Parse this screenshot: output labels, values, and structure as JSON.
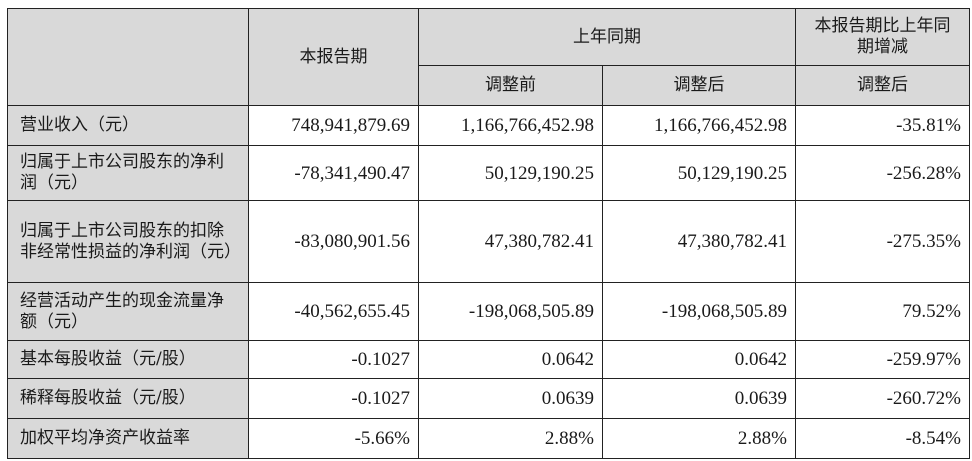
{
  "header": {
    "current_period": "本报告期",
    "prior_period": "上年同期",
    "change": "本报告期比上年同期增减",
    "before_adjust": "调整前",
    "after_adjust": "调整后",
    "change_after_adjust": "调整后"
  },
  "rows": [
    {
      "label": "营业收入（元）",
      "current": "748,941,879.69",
      "before": "1,166,766,452.98",
      "after": "1,166,766,452.98",
      "change": "-35.81%"
    },
    {
      "label": "归属于上市公司股东的净利润（元）",
      "current": "-78,341,490.47",
      "before": "50,129,190.25",
      "after": "50,129,190.25",
      "change": "-256.28%"
    },
    {
      "label": "归属于上市公司股东的扣除非经常性损益的净利润（元）",
      "current": "-83,080,901.56",
      "before": "47,380,782.41",
      "after": "47,380,782.41",
      "change": "-275.35%"
    },
    {
      "label": "经营活动产生的现金流量净额（元）",
      "current": "-40,562,655.45",
      "before": "-198,068,505.89",
      "after": "-198,068,505.89",
      "change": "79.52%"
    },
    {
      "label": "基本每股收益（元/股）",
      "current": "-0.1027",
      "before": "0.0642",
      "after": "0.0642",
      "change": "-259.97%"
    },
    {
      "label": "稀释每股收益（元/股）",
      "current": "-0.1027",
      "before": "0.0639",
      "after": "0.0639",
      "change": "-260.72%"
    },
    {
      "label": "加权平均净资产收益率",
      "current": "-5.66%",
      "before": "2.88%",
      "after": "2.88%",
      "change": "-8.54%"
    }
  ]
}
